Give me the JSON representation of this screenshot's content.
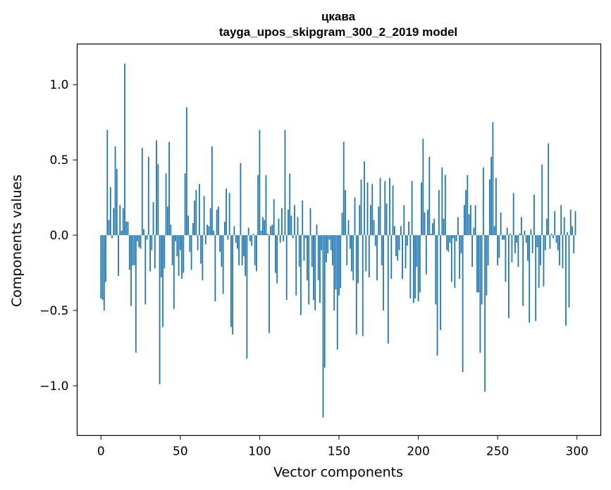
{
  "chart_data": {
    "type": "bar",
    "title": "цкава",
    "subtitle": "tayga_upos_skipgram_300_2_2019 model",
    "xlabel": "Vector components",
    "ylabel": "Components values",
    "xlim": [
      -15,
      315
    ],
    "ylim": [
      -1.33,
      1.27
    ],
    "xticks": [
      0,
      50,
      100,
      150,
      200,
      250,
      300
    ],
    "yticks": [
      -1.0,
      -0.5,
      0.0,
      0.5,
      1.0
    ],
    "ytick_labels": [
      "−1.0",
      "−0.5",
      "0.0",
      "0.5",
      "1.0"
    ],
    "grid": false,
    "values": [
      -0.42,
      -0.43,
      -0.5,
      -0.31,
      0.7,
      0.1,
      0.32,
      -0.02,
      0.18,
      0.59,
      0.44,
      -0.27,
      0.2,
      0.03,
      0.18,
      1.14,
      0.09,
      0.09,
      -0.23,
      -0.47,
      -0.2,
      -0.2,
      -0.78,
      -0.04,
      -0.08,
      -0.09,
      0.58,
      0.04,
      -0.46,
      -0.03,
      0.52,
      -0.24,
      -0.1,
      0.22,
      -0.22,
      0.63,
      0.47,
      -0.99,
      -0.28,
      -0.61,
      -0.22,
      0.41,
      0.19,
      0.62,
      0.07,
      -0.2,
      -0.49,
      -0.04,
      -0.14,
      -0.27,
      -0.1,
      -0.29,
      -0.25,
      0.41,
      0.85,
      0.13,
      -0.11,
      -0.23,
      0.08,
      0.23,
      0.3,
      -0.1,
      0.34,
      -0.19,
      -0.3,
      0.26,
      -0.06,
      0.07,
      0.06,
      0.18,
      0.59,
      0.03,
      -0.44,
      0.17,
      0.19,
      -0.11,
      -0.21,
      -0.39,
      0.09,
      0.31,
      -0.03,
      0.28,
      -0.61,
      -0.66,
      0.06,
      -0.05,
      -0.09,
      -0.2,
      0.48,
      -0.2,
      -0.14,
      -0.27,
      -0.82,
      0.05,
      -0.04,
      -0.07,
      0.01,
      -0.2,
      -0.24,
      0.4,
      0.7,
      0.03,
      0.12,
      0.1,
      0.4,
      0.01,
      -0.65,
      0.06,
      0.07,
      0.24,
      -0.25,
      -0.32,
      0.11,
      -0.05,
      0.18,
      -0.04,
      0.7,
      -0.43,
      0.17,
      0.41,
      0.13,
      -0.02,
      0.2,
      -0.4,
      0.12,
      -0.21,
      -0.53,
      0.23,
      -0.17,
      -0.02,
      -0.3,
      -0.46,
      0.18,
      -0.21,
      -0.43,
      -0.5,
      0.07,
      -0.3,
      -0.45,
      -0.1,
      -1.21,
      -0.88,
      -0.18,
      -0.12,
      -0.03,
      -0.1,
      -0.2,
      -0.5,
      -0.36,
      -0.76,
      -0.4,
      -0.35,
      0.15,
      0.62,
      0.3,
      -0.2,
      0.1,
      -0.09,
      -0.24,
      -0.3,
      0.25,
      -0.66,
      -0.32,
      0.2,
      0.37,
      -0.67,
      0.49,
      -0.24,
      0.35,
      -0.28,
      0.2,
      0.34,
      0.1,
      -0.07,
      -0.3,
      0.19,
      0.38,
      -0.2,
      -0.5,
      0.36,
      0.21,
      -0.72,
      0.38,
      -0.29,
      0.33,
      0.06,
      -0.14,
      -0.17,
      -0.1,
      0.06,
      -0.29,
      0.2,
      -0.22,
      -0.07,
      0.09,
      -0.42,
      0.36,
      -0.45,
      -0.42,
      -0.21,
      -0.44,
      -0.38,
      0.35,
      0.64,
      0.15,
      -0.26,
      0.17,
      0.52,
      0.01,
      0.08,
      0.11,
      -0.46,
      -0.8,
      0.3,
      -0.63,
      0.45,
      0.11,
      0.4,
      -0.1,
      -0.11,
      -0.05,
      -0.31,
      -0.02,
      -0.35,
      -0.04,
      0.12,
      -0.29,
      -0.12,
      -0.91,
      0.2,
      0.3,
      0.4,
      0.14,
      0.2,
      -0.21,
      0.05,
      0.2,
      -0.38,
      -0.38,
      -0.78,
      -0.46,
      0.45,
      -1.04,
      -0.4,
      -0.2,
      0.37,
      0.52,
      0.75,
      0.06,
      0.38,
      -0.2,
      -0.15,
      0.15,
      -0.03,
      -0.03,
      -0.31,
      0.05,
      -0.55,
      0.01,
      -0.18,
      0.28,
      -0.12,
      -0.05,
      -0.21,
      0.01,
      0.12,
      -0.47,
      0.03,
      -0.05,
      -0.17,
      -0.58,
      0.04,
      -0.12,
      0.27,
      -0.57,
      -0.08,
      -0.35,
      -0.2,
      0.47,
      -0.34,
      -0.1,
      0.11,
      0.61,
      -0.09,
      0.01,
      -0.02,
      0.16,
      -0.05,
      -0.1,
      -0.2,
      0.2,
      -0.22,
      0.12,
      -0.6,
      0.02,
      -0.48,
      0.17,
      0.06,
      -0.12,
      0.16
    ]
  }
}
